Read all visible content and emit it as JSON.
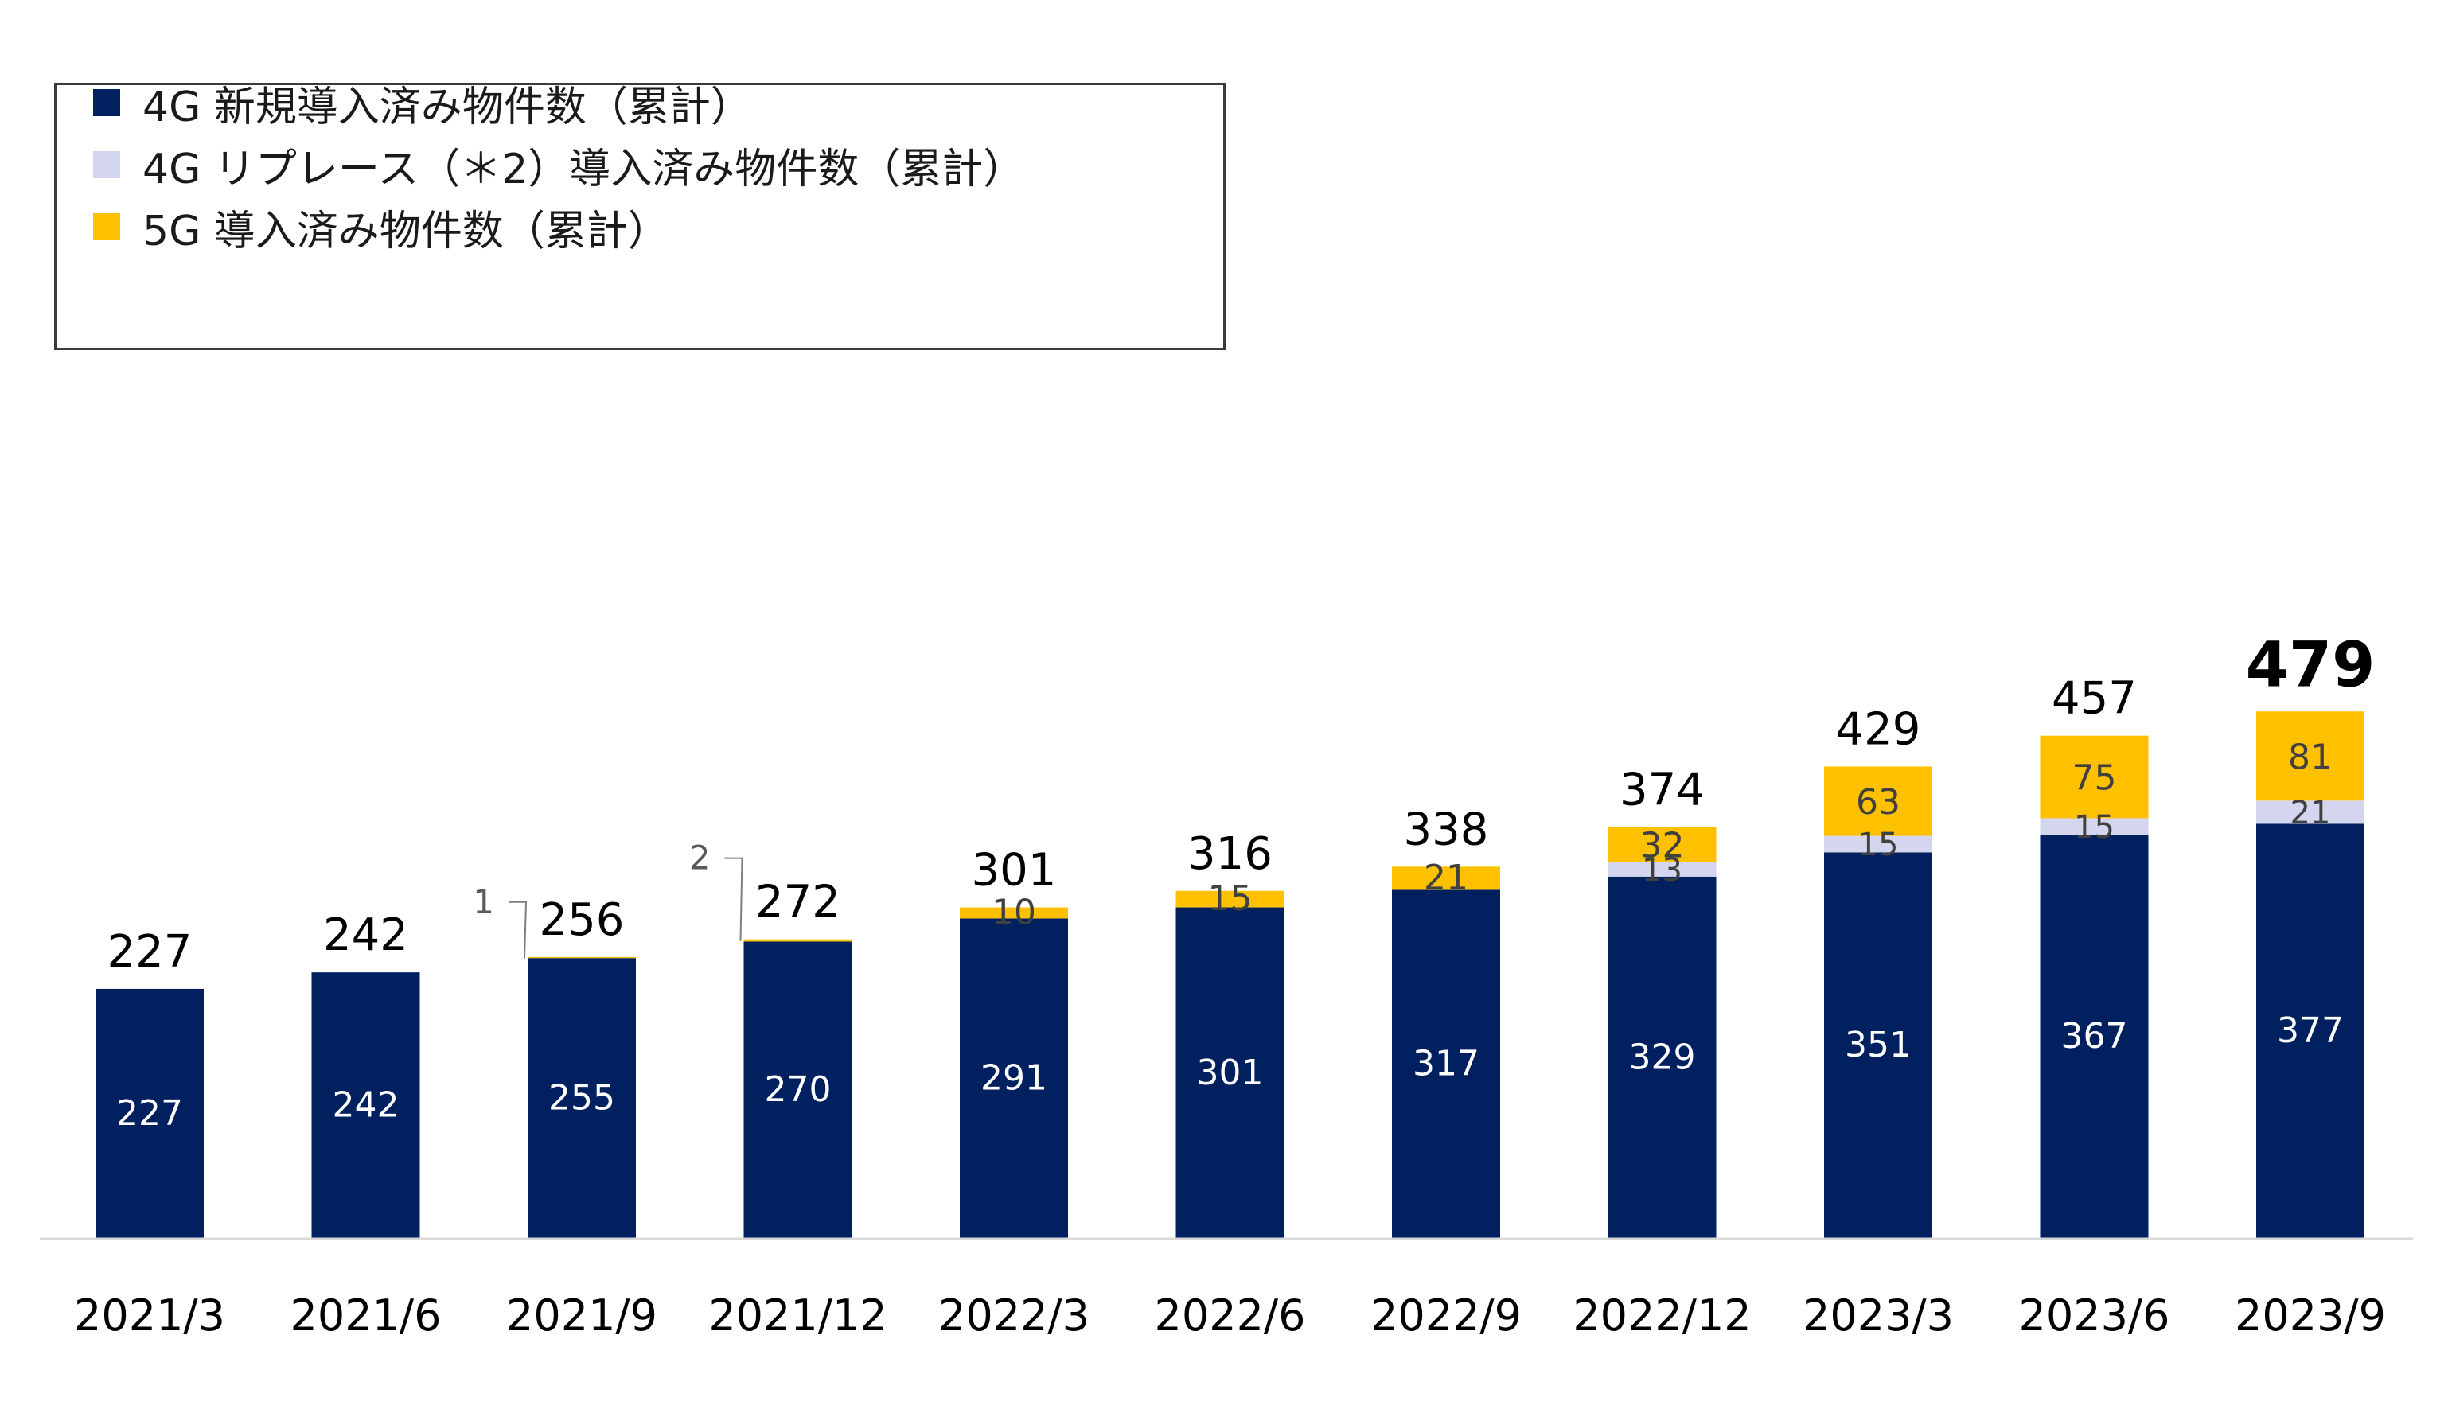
{
  "chart_data": {
    "type": "bar",
    "stacked": true,
    "title": "",
    "xlabel": "",
    "ylabel": "",
    "ylim": [
      0,
      500
    ],
    "grid": false,
    "legend_position": "top-left",
    "categories": [
      "2021/3",
      "2021/6",
      "2021/9",
      "2021/12",
      "2022/3",
      "2022/6",
      "2022/9",
      "2022/12",
      "2023/3",
      "2023/6",
      "2023/9"
    ],
    "series": [
      {
        "name": "4G 新規導入済み物件数（累計）",
        "color": "#012060",
        "label_color": "#ffffff",
        "values": [
          227,
          242,
          255,
          270,
          291,
          301,
          317,
          329,
          351,
          367,
          377
        ],
        "labels": [
          "227",
          "242",
          "255",
          "270",
          "291",
          "301",
          "317",
          "329",
          "351",
          "367",
          "377"
        ]
      },
      {
        "name": "4G リプレース（＊2）導入済み物件数（累計）",
        "color": "#d4d6ef",
        "label_color": "#404040",
        "values": [
          0,
          0,
          0,
          0,
          0,
          0,
          0,
          13,
          15,
          15,
          21
        ],
        "labels": [
          "",
          "",
          "",
          "",
          "",
          "",
          "",
          "13",
          "15",
          "15",
          "21"
        ]
      },
      {
        "name": "5G 導入済み物件数（累計）",
        "color": "#ffc000",
        "label_color": "#404040",
        "values": [
          0,
          0,
          1,
          2,
          10,
          15,
          21,
          32,
          63,
          75,
          81
        ],
        "labels": [
          "",
          "",
          "1",
          "2",
          "10",
          "15",
          "21",
          "32",
          "63",
          "75",
          "81"
        ]
      }
    ],
    "totals": [
      227,
      242,
      256,
      272,
      301,
      316,
      338,
      374,
      429,
      457,
      479
    ],
    "total_labels": [
      "227",
      "242",
      "256",
      "272",
      "301",
      "316",
      "338",
      "374",
      "429",
      "457",
      "479"
    ],
    "highlight_total_index": 10
  }
}
